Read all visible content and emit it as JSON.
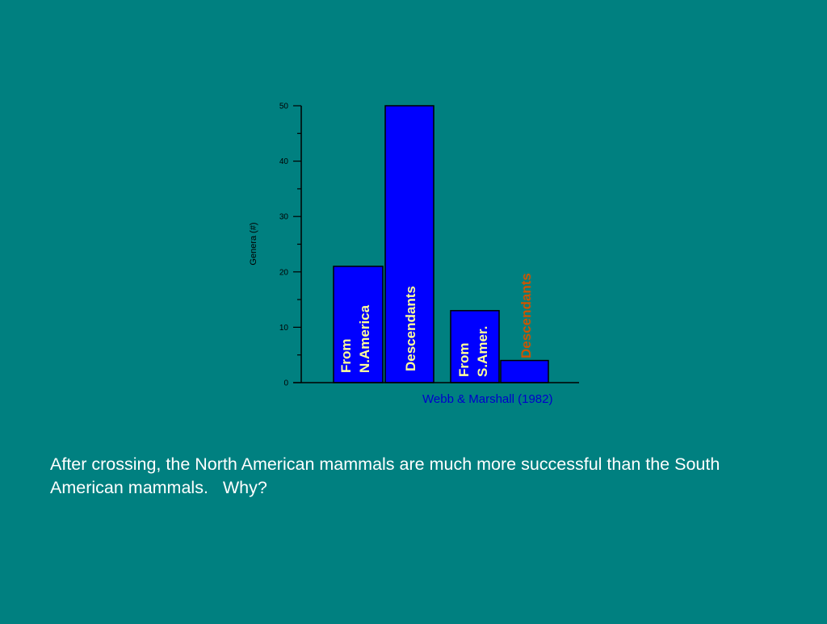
{
  "colors": {
    "background": "#008080",
    "bar": "#0000ff",
    "bar_label": "#ffff99",
    "annotation_label": "#cc5500",
    "source_text": "#0000cc",
    "axis": "#000000",
    "caption": "#ffffff"
  },
  "chart_data": {
    "type": "bar",
    "categories": [
      "From N.America",
      "Descendants",
      "From S.Amer.",
      "Descendants"
    ],
    "values": [
      21,
      50,
      13,
      4
    ],
    "bar_labels": [
      [
        "From",
        "N.America"
      ],
      [
        "Descendants"
      ],
      [
        "From",
        "S.Amer."
      ],
      [
        "Descendants"
      ]
    ],
    "title": "",
    "xlabel": "",
    "ylabel": "Genera (#)",
    "ylim": [
      0,
      50
    ],
    "yticks": [
      "0",
      "10",
      "20",
      "30",
      "40",
      "50"
    ],
    "grid": false,
    "source": "Webb & Marshall (1982)"
  },
  "caption": {
    "text": "After crossing, the North American mammals are much more successful than the South American mammals.   Why?"
  }
}
